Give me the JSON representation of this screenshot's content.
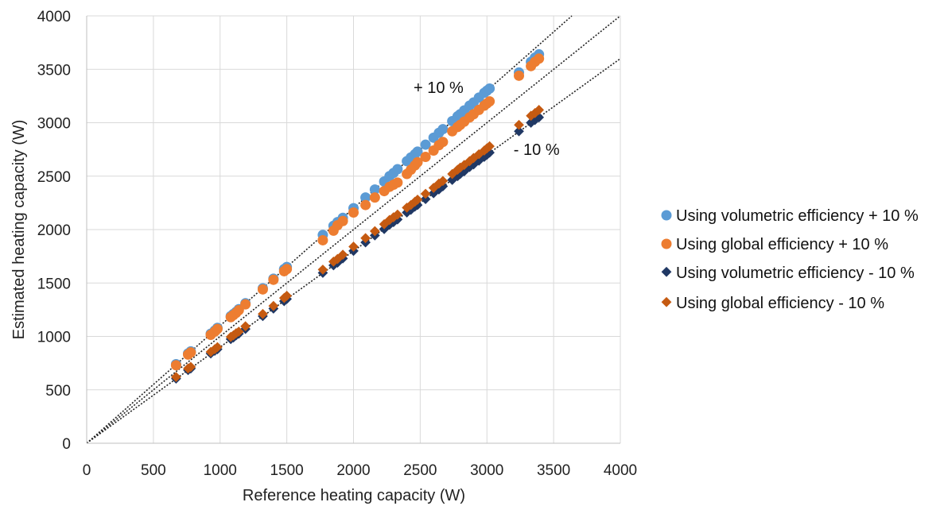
{
  "chart_data": {
    "type": "scatter",
    "title": "",
    "xlabel": "Reference heating capacity (W)",
    "ylabel": "Estimated heating capacity (W)",
    "xlim": [
      0,
      4000
    ],
    "ylim": [
      0,
      4000
    ],
    "xticks": [
      "0",
      "500",
      "1000",
      "1500",
      "2000",
      "2500",
      "3000",
      "3500",
      "4000"
    ],
    "yticks": [
      "0",
      "500",
      "1000",
      "1500",
      "2000",
      "2500",
      "3000",
      "3500",
      "4000"
    ],
    "grid": true,
    "legend_position": "right",
    "reference_lines": [
      {
        "slope": 1.1,
        "style": "dotted"
      },
      {
        "slope": 1.0,
        "style": "dotted"
      },
      {
        "slope": 0.9,
        "style": "dotted"
      }
    ],
    "annotations": [
      {
        "text": "+ 10 %",
        "x": 2450,
        "y": 3280
      },
      {
        "text": "- 10 %",
        "x": 3200,
        "y": 2700
      }
    ],
    "x": [
      670,
      760,
      780,
      930,
      960,
      980,
      1080,
      1100,
      1120,
      1140,
      1190,
      1320,
      1400,
      1480,
      1500,
      1770,
      1850,
      1880,
      1920,
      2000,
      2090,
      2160,
      2230,
      2270,
      2300,
      2330,
      2400,
      2430,
      2460,
      2480,
      2540,
      2600,
      2640,
      2670,
      2740,
      2780,
      2800,
      2830,
      2870,
      2900,
      2940,
      2980,
      3000,
      3020,
      3240,
      3330,
      3360,
      3390
    ],
    "series": [
      {
        "name": "Using volumetric efficiency + 10 %",
        "marker": "circle",
        "color": "#5B9BD5",
        "values": [
          740,
          840,
          860,
          1025,
          1055,
          1080,
          1190,
          1210,
          1230,
          1255,
          1310,
          1450,
          1540,
          1630,
          1650,
          1950,
          2035,
          2070,
          2110,
          2200,
          2300,
          2375,
          2450,
          2500,
          2530,
          2565,
          2640,
          2675,
          2705,
          2730,
          2795,
          2860,
          2905,
          2940,
          3015,
          3060,
          3080,
          3115,
          3160,
          3190,
          3235,
          3280,
          3300,
          3320,
          3470,
          3570,
          3610,
          3640
        ]
      },
      {
        "name": "Using global efficiency + 10 %",
        "marker": "circle",
        "color": "#ED7D31",
        "values": [
          730,
          830,
          850,
          1015,
          1045,
          1070,
          1180,
          1200,
          1220,
          1245,
          1300,
          1440,
          1530,
          1610,
          1630,
          1900,
          1990,
          2040,
          2080,
          2160,
          2230,
          2300,
          2360,
          2400,
          2420,
          2440,
          2520,
          2560,
          2600,
          2630,
          2680,
          2740,
          2790,
          2820,
          2920,
          2960,
          2980,
          3010,
          3050,
          3080,
          3120,
          3160,
          3180,
          3200,
          3440,
          3530,
          3570,
          3600
        ]
      },
      {
        "name": "Using volumetric efficiency - 10 %",
        "marker": "diamond",
        "color": "#203864",
        "values": [
          605,
          685,
          700,
          840,
          865,
          880,
          975,
          990,
          1010,
          1025,
          1070,
          1190,
          1260,
          1330,
          1350,
          1595,
          1665,
          1690,
          1730,
          1800,
          1880,
          1945,
          2005,
          2045,
          2070,
          2095,
          2160,
          2185,
          2215,
          2230,
          2285,
          2340,
          2375,
          2405,
          2465,
          2500,
          2520,
          2545,
          2585,
          2610,
          2645,
          2680,
          2700,
          2720,
          2920,
          3000,
          3025,
          3050
        ]
      },
      {
        "name": "Using global efficiency - 10 %",
        "marker": "diamond",
        "color": "#C55A11",
        "values": [
          620,
          700,
          715,
          855,
          880,
          900,
          995,
          1010,
          1030,
          1045,
          1095,
          1210,
          1285,
          1360,
          1380,
          1625,
          1700,
          1725,
          1765,
          1840,
          1920,
          1985,
          2050,
          2090,
          2115,
          2140,
          2205,
          2230,
          2260,
          2280,
          2335,
          2390,
          2430,
          2455,
          2520,
          2560,
          2580,
          2605,
          2640,
          2670,
          2705,
          2740,
          2760,
          2780,
          2980,
          3065,
          3090,
          3120
        ]
      }
    ]
  }
}
